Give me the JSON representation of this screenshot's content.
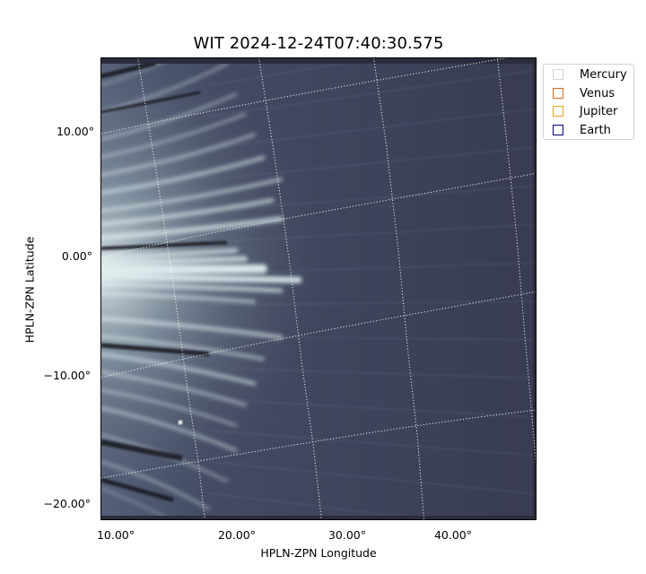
{
  "title": "WIT 2024-12-24T07:40:30.575",
  "axes": {
    "xlabel": "HPLN-ZPN Longitude",
    "ylabel": "HPLN-ZPN Latitude",
    "xticks": [
      "10.00°",
      "20.00°",
      "30.00°",
      "40.00°"
    ],
    "yticks": [
      "10.00°",
      "0.00°",
      "−10.00°",
      "−20.00°"
    ]
  },
  "legend": {
    "placement": "top-right outside plot",
    "items": [
      {
        "label": "Mercury",
        "color": "#d3d3d3"
      },
      {
        "label": "Venus",
        "color": "#d2691e"
      },
      {
        "label": "Jupiter",
        "color": "#daa520"
      },
      {
        "label": "Earth",
        "color": "#000080"
      }
    ]
  },
  "image": {
    "colormap": "bone",
    "background_color": "#3a3d55",
    "streamer_color": "#dfeeee",
    "grid": true,
    "grid_style": "white dotted"
  }
}
